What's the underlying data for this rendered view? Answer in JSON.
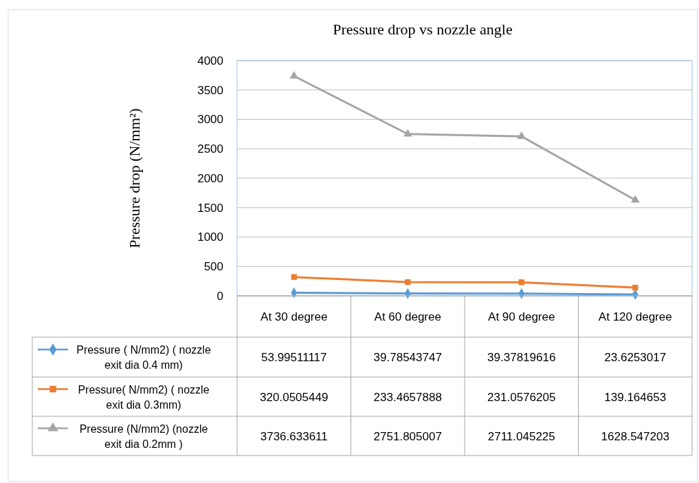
{
  "chart_data": {
    "type": "line",
    "title": "Pressure drop vs nozzle angle",
    "ylabel": "Pressure drop (N/mm²)",
    "categories": [
      "At 30 degree",
      "At 60 degree",
      "At 90 degree",
      "At 120 degree"
    ],
    "series": [
      {
        "name": "Pressure ( N/mm2) ( nozzle exit dia 0.4 mm)",
        "color": "#5b9bd5",
        "marker": "diamond",
        "values": [
          53.99511117,
          39.78543747,
          39.37819616,
          23.6253017
        ]
      },
      {
        "name": "Pressure( N/mm2) ( nozzle exit dia 0.3mm)",
        "color": "#ed7d31",
        "marker": "square",
        "values": [
          320.0505449,
          233.4657888,
          231.0576205,
          139.164653
        ]
      },
      {
        "name": "Pressure (N/mm2) (nozzle exit dia 0.2mm )",
        "color": "#a5a5a5",
        "marker": "triangle",
        "values": [
          3736.633611,
          2751.805007,
          2711.045225,
          1628.547203
        ]
      }
    ],
    "ylim": [
      0,
      4000
    ],
    "yticks": [
      0,
      500,
      1000,
      1500,
      2000,
      2500,
      3000,
      3500,
      4000
    ],
    "grid": "y",
    "legend": "bottom",
    "data_labels": true
  }
}
